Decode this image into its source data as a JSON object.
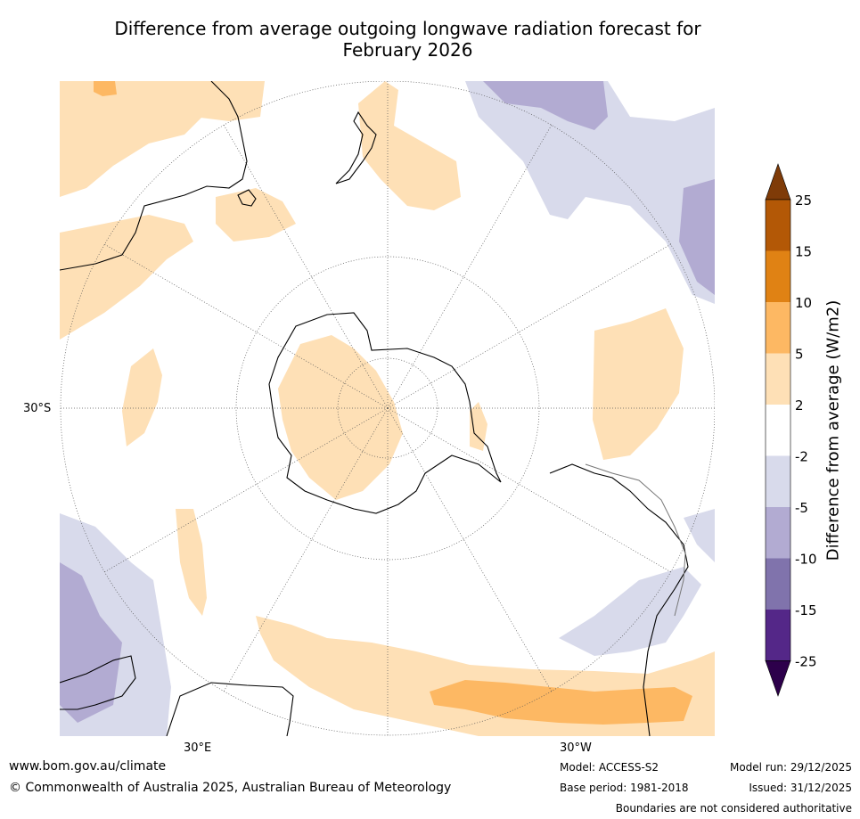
{
  "title": {
    "line1": "Difference from average outgoing longwave radiation forecast for",
    "line2": "February 2026"
  },
  "map": {
    "projection": "south-polar-stereographic",
    "lat_label": "30°S",
    "lon_labels": [
      "30°E",
      "30°W"
    ]
  },
  "colorbar": {
    "label": "Difference from average (W/m2)",
    "ticks": [
      "25",
      "15",
      "10",
      "5",
      "2",
      "-2",
      "-5",
      "-10",
      "-15",
      "-25"
    ],
    "colors": {
      "above25": "#7f3b08",
      "15_25": "#b35806",
      "10_15": "#e08214",
      "5_10": "#fdb863",
      "2_5": "#fee0b6",
      "neutral": "#ffffff",
      "m5_m2": "#d8daeb",
      "m10_m5": "#b2abd2",
      "m15_m10": "#8073ac",
      "m25_m15": "#542788",
      "below_m25": "#2d004b"
    }
  },
  "footer": {
    "website": "www.bom.gov.au/climate",
    "copyright": "© Commonwealth of Australia 2025, Australian Bureau of Meteorology",
    "model": "Model: ACCESS-S2",
    "base_period": "Base period: 1981-2018",
    "model_run": "Model run: 29/12/2025",
    "issued": "Issued: 31/12/2025",
    "disclaimer": "Boundaries are not considered authoritative"
  }
}
